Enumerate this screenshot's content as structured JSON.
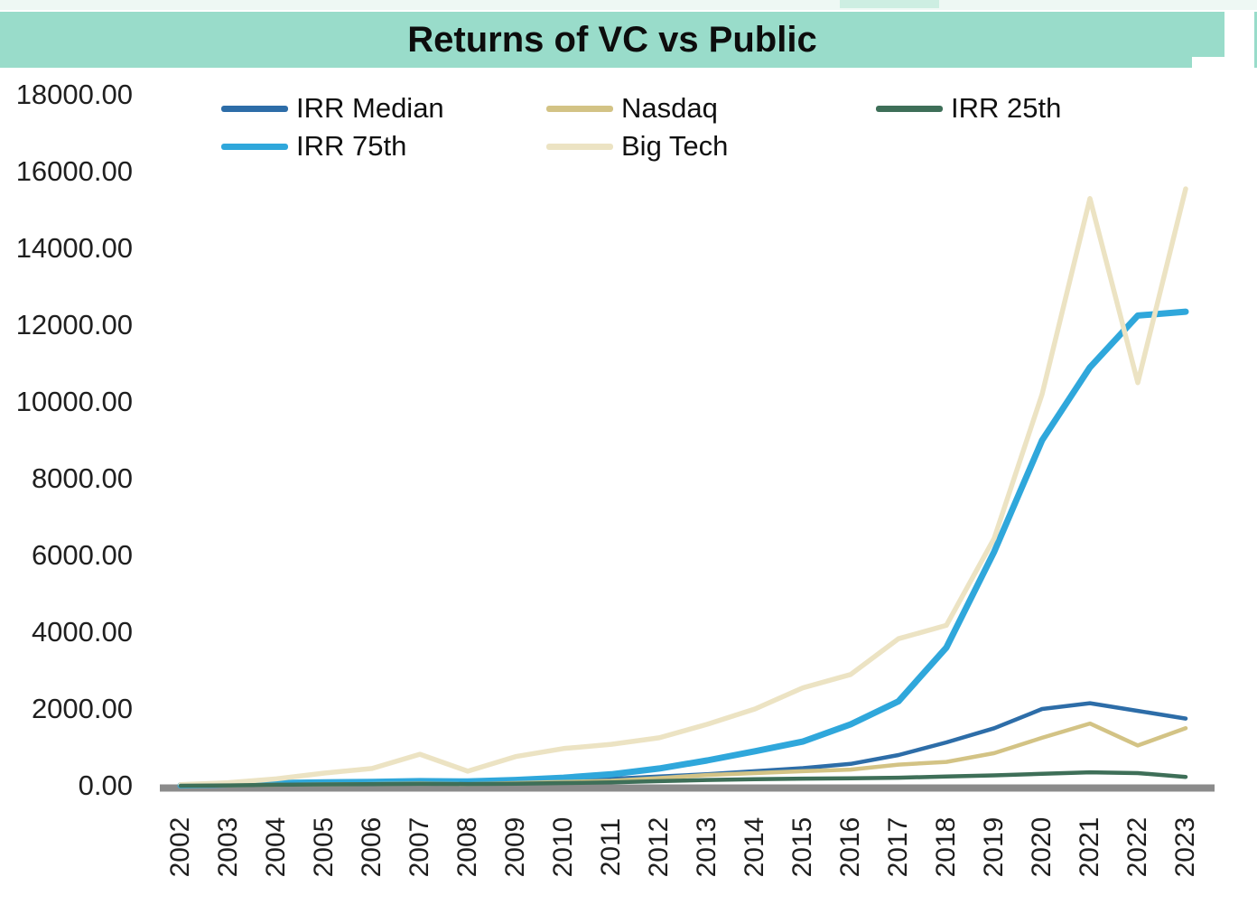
{
  "header": {
    "title": "Returns of VC vs Public",
    "banner_color": "#99dcca"
  },
  "legend": {
    "items": [
      {
        "label": "IRR Median",
        "color": "#2d6da8"
      },
      {
        "label": "Nasdaq",
        "color": "#d3c385"
      },
      {
        "label": "IRR 25th",
        "color": "#3e6f58"
      },
      {
        "label": "IRR 75th",
        "color": "#2fa7db"
      },
      {
        "label": "Big Tech",
        "color": "#ece3c3"
      }
    ]
  },
  "chart_data": {
    "type": "line",
    "title": "Returns of VC vs Public",
    "xlabel": "",
    "ylabel": "",
    "x": [
      "2002",
      "2003",
      "2004",
      "2005",
      "2006",
      "2007",
      "2008",
      "2009",
      "2010",
      "2011",
      "2012",
      "2013",
      "2014",
      "2015",
      "2016",
      "2017",
      "2018",
      "2019",
      "2020",
      "2021",
      "2022",
      "2023"
    ],
    "ylim": [
      0,
      18000
    ],
    "y_ticks": [
      "18000.00",
      "16000.00",
      "14000.00",
      "12000.00",
      "10000.00",
      "8000.00",
      "6000.00",
      "4000.00",
      "2000.00",
      "0.00"
    ],
    "grid": false,
    "legend_position": "top",
    "axis_color": "#8b8b8b",
    "series": [
      {
        "name": "IRR Median",
        "color": "#2d6da8",
        "width": 4.5,
        "values": [
          5,
          20,
          40,
          55,
          65,
          80,
          70,
          90,
          130,
          180,
          240,
          300,
          380,
          460,
          570,
          800,
          1130,
          1500,
          2000,
          2150,
          1950,
          1750
        ]
      },
      {
        "name": "IRR 75th",
        "color": "#2fa7db",
        "width": 7,
        "values": [
          10,
          35,
          70,
          90,
          100,
          120,
          110,
          150,
          210,
          300,
          450,
          660,
          900,
          1150,
          1600,
          2200,
          3600,
          6100,
          9000,
          10900,
          12250,
          12350
        ]
      },
      {
        "name": "Nasdaq",
        "color": "#d3c385",
        "width": 4.5,
        "values": [
          0,
          10,
          25,
          35,
          45,
          60,
          40,
          70,
          100,
          130,
          200,
          280,
          330,
          380,
          420,
          550,
          620,
          850,
          1250,
          1620,
          1050,
          1500
        ]
      },
      {
        "name": "Big Tech",
        "color": "#ece3c3",
        "width": 5.5,
        "values": [
          30,
          80,
          180,
          330,
          450,
          820,
          380,
          760,
          970,
          1080,
          1250,
          1600,
          2000,
          2550,
          2900,
          3830,
          4180,
          6450,
          10200,
          15300,
          10500,
          15550
        ]
      },
      {
        "name": "IRR 25th",
        "color": "#3e6f58",
        "width": 4.5,
        "values": [
          0,
          10,
          25,
          35,
          40,
          50,
          45,
          55,
          70,
          90,
          120,
          150,
          170,
          185,
          195,
          210,
          240,
          270,
          310,
          350,
          330,
          230
        ]
      }
    ]
  }
}
